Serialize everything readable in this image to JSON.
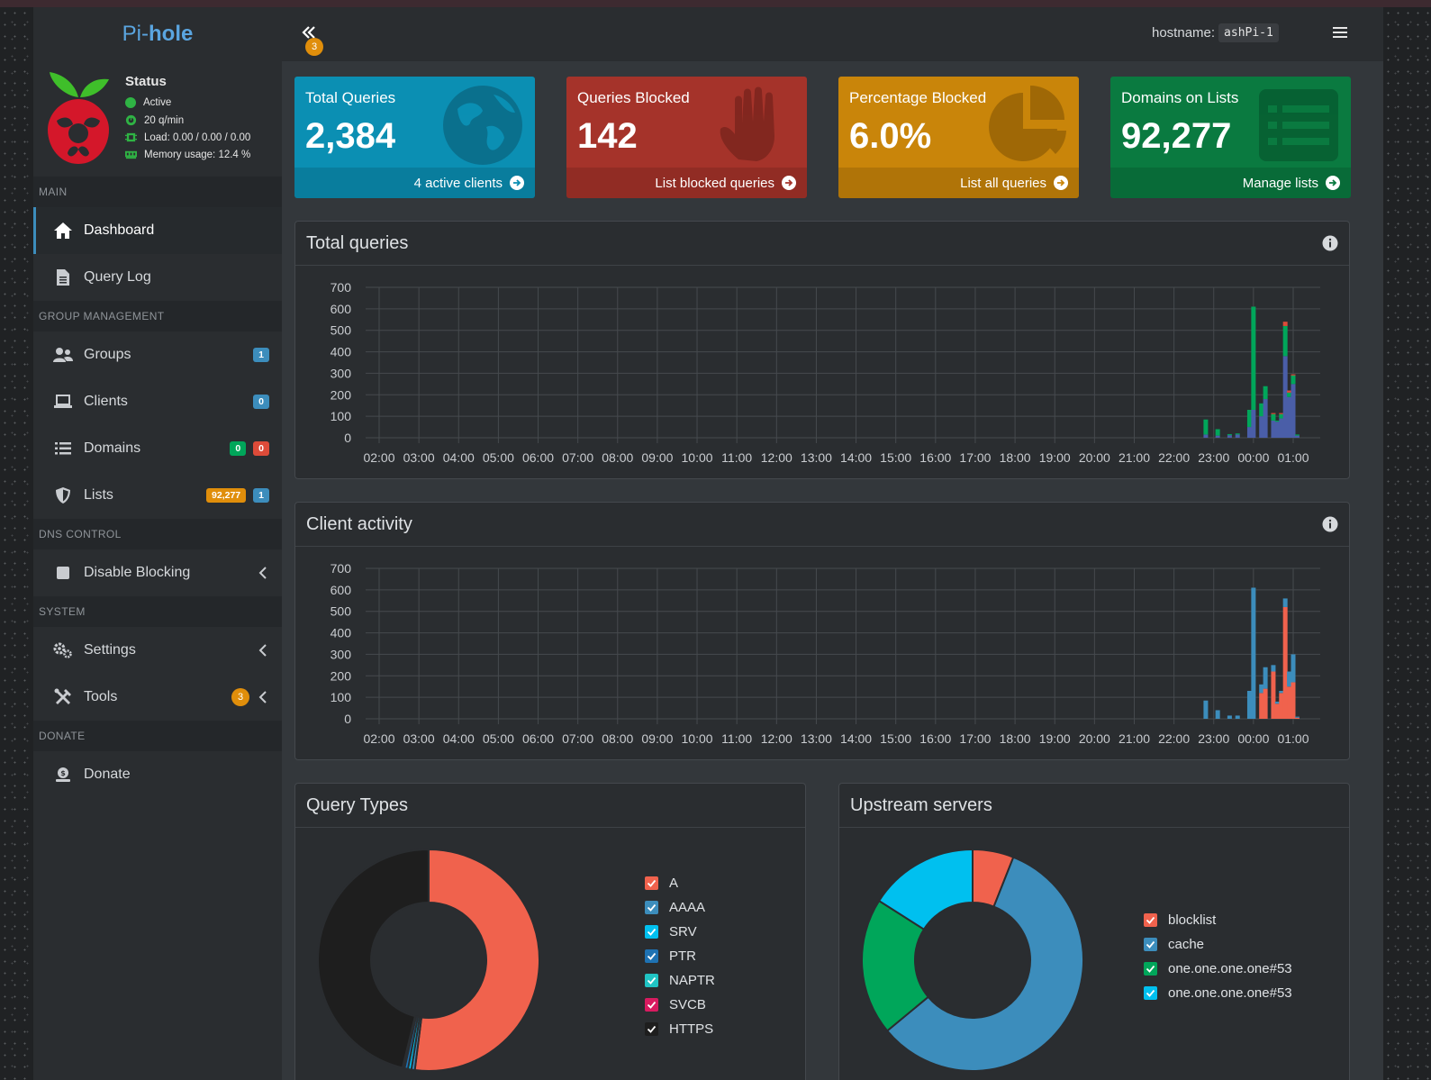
{
  "sidebar": {
    "logo_prefix": "Pi-",
    "logo_suffix": "hole",
    "status": {
      "title": "Status",
      "active": "Active",
      "rate": "20 q/min",
      "load": "Load: 0.00 / 0.00 / 0.00",
      "memory": "Memory usage: 12.4 %"
    },
    "sections": {
      "main": "MAIN",
      "group": "GROUP MANAGEMENT",
      "dns": "DNS CONTROL",
      "system": "SYSTEM",
      "donate": "DONATE"
    },
    "items": {
      "dashboard": "Dashboard",
      "query_log": "Query Log",
      "groups": "Groups",
      "groups_count": "1",
      "clients": "Clients",
      "clients_count": "0",
      "domains": "Domains",
      "domains_allow": "0",
      "domains_deny": "0",
      "lists": "Lists",
      "lists_domains": "92,277",
      "lists_count": "1",
      "disable_blocking": "Disable Blocking",
      "settings": "Settings",
      "tools": "Tools",
      "tools_badge": "3",
      "donate": "Donate"
    }
  },
  "header": {
    "toggle_badge": "3",
    "hostname_label": "hostname:",
    "hostname_value": "ashPi-1"
  },
  "boxes": {
    "total": {
      "title": "Total Queries",
      "value": "2,384",
      "footer": "4 active clients",
      "color": "#0b8fb3"
    },
    "blocked": {
      "title": "Queries Blocked",
      "value": "142",
      "footer": "List blocked queries",
      "color": "#a5332a"
    },
    "percent": {
      "title": "Percentage Blocked",
      "value": "6.0%",
      "footer": "List all queries",
      "color": "#c9850a"
    },
    "domains": {
      "title": "Domains on Lists",
      "value": "92,277",
      "footer": "Manage lists",
      "color": "#0a7a40"
    }
  },
  "panels": {
    "total_queries": "Total queries",
    "client_activity": "Client activity",
    "query_types": "Query Types",
    "upstream": "Upstream servers"
  },
  "chart_data": [
    {
      "type": "bar",
      "name": "total-queries",
      "title": "Total queries",
      "ylim": [
        0,
        700
      ],
      "yticks": [
        0,
        100,
        200,
        300,
        400,
        500,
        600,
        700
      ],
      "xticks": [
        "02:00",
        "03:00",
        "04:00",
        "05:00",
        "06:00",
        "07:00",
        "08:00",
        "09:00",
        "10:00",
        "11:00",
        "12:00",
        "13:00",
        "14:00",
        "15:00",
        "16:00",
        "17:00",
        "18:00",
        "19:00",
        "20:00",
        "21:00",
        "22:00",
        "23:00",
        "00:00",
        "01:00"
      ],
      "grid": true,
      "stacked": true,
      "bar_offsets_hours": [
        -0.2,
        0.1,
        0.4,
        0.6,
        0.9,
        1.0,
        1.2,
        1.3,
        1.5,
        1.6,
        1.7,
        1.8,
        1.9,
        2.0,
        2.1
      ],
      "series": [
        {
          "color": "#4a5ea8",
          "values": [
            15,
            10,
            12,
            15,
            50,
            130,
            100,
            180,
            80,
            75,
            90,
            380,
            190,
            250,
            10
          ]
        },
        {
          "color": "#00a65a",
          "values": [
            70,
            30,
            5,
            5,
            80,
            480,
            60,
            60,
            30,
            5,
            20,
            140,
            20,
            40,
            5
          ]
        },
        {
          "color": "#dd4b39",
          "values": [
            0,
            0,
            0,
            0,
            0,
            0,
            0,
            0,
            5,
            0,
            5,
            20,
            10,
            5,
            0
          ]
        }
      ]
    },
    {
      "type": "bar",
      "name": "client-activity",
      "title": "Client activity",
      "ylim": [
        0,
        700
      ],
      "yticks": [
        0,
        100,
        200,
        300,
        400,
        500,
        600,
        700
      ],
      "xticks": [
        "02:00",
        "03:00",
        "04:00",
        "05:00",
        "06:00",
        "07:00",
        "08:00",
        "09:00",
        "10:00",
        "11:00",
        "12:00",
        "13:00",
        "14:00",
        "15:00",
        "16:00",
        "17:00",
        "18:00",
        "19:00",
        "20:00",
        "21:00",
        "22:00",
        "23:00",
        "00:00",
        "01:00"
      ],
      "grid": true,
      "stacked": true,
      "bar_offsets_hours": [
        -0.2,
        0.1,
        0.4,
        0.6,
        0.9,
        1.0,
        1.2,
        1.3,
        1.5,
        1.6,
        1.7,
        1.8,
        1.9,
        2.0,
        2.1
      ],
      "series": [
        {
          "color": "#f0624d",
          "values": [
            0,
            0,
            0,
            0,
            0,
            0,
            120,
            140,
            220,
            70,
            120,
            520,
            150,
            170,
            5
          ]
        },
        {
          "color": "#3c8dbc",
          "values": [
            85,
            40,
            15,
            15,
            130,
            610,
            40,
            100,
            30,
            10,
            10,
            40,
            70,
            130,
            5
          ]
        }
      ]
    },
    {
      "type": "pie",
      "name": "query-types",
      "title": "Query Types",
      "donut": true,
      "categories": [
        "A",
        "AAAA",
        "SRV",
        "PTR",
        "NAPTR",
        "SVCB",
        "HTTPS"
      ],
      "values": [
        52,
        0.5,
        0.5,
        0.5,
        0.2,
        0.1,
        46.2
      ],
      "colors": [
        "#f0624d",
        "#3c8dbc",
        "#00c0ef",
        "#1e72b3",
        "#20c4c4",
        "#d81b60",
        "#1e1e1e"
      ]
    },
    {
      "type": "pie",
      "name": "upstream-servers",
      "title": "Upstream servers",
      "donut": true,
      "categories": [
        "blocklist",
        "cache",
        "one.one.one.one#53",
        "one.one.one.one#53"
      ],
      "values": [
        6,
        58,
        20,
        16
      ],
      "colors": [
        "#f0624d",
        "#3c8dbc",
        "#00a65a",
        "#00c0ef"
      ]
    }
  ]
}
